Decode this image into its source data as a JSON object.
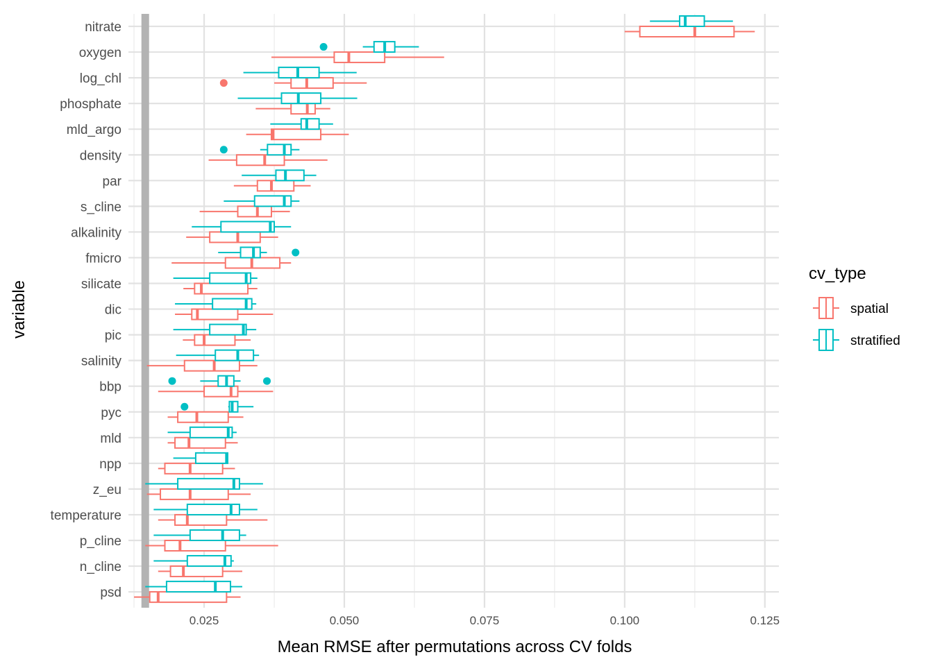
{
  "chart_data": {
    "type": "boxplot",
    "orientation": "horizontal",
    "xlabel": "Mean RMSE after permutations across CV folds",
    "ylabel": "variable",
    "xlim": [
      0.0115,
      0.1275
    ],
    "xticks": [
      "0.025",
      "0.050",
      "0.075",
      "0.100",
      "0.125"
    ],
    "xtick_values": [
      0.025,
      0.05,
      0.075,
      0.1,
      0.125
    ],
    "xminor_values": [
      0.0125,
      0.0375,
      0.0625,
      0.0875,
      0.1125
    ],
    "grid": true,
    "reference_line": 0.0145,
    "reference_line_color": "#b3b3b3",
    "legend": {
      "title": "cv_type",
      "position": "right",
      "entries": [
        {
          "name": "spatial",
          "color": "#F8766D"
        },
        {
          "name": "stratified",
          "color": "#00BFC4"
        }
      ]
    },
    "categories": [
      "nitrate",
      "oxygen",
      "log_chl",
      "phosphate",
      "mld_argo",
      "density",
      "par",
      "s_cline",
      "alkalinity",
      "fmicro",
      "silicate",
      "dic",
      "pic",
      "salinity",
      "bbp",
      "pyc",
      "mld",
      "npp",
      "z_eu",
      "temperature",
      "p_cline",
      "n_cline",
      "psd"
    ],
    "series": [
      {
        "name": "spatial",
        "color": "#F8766D",
        "boxes": [
          {
            "min": 0.1,
            "q1": 0.1027,
            "median": 0.1125,
            "q3": 0.1195,
            "max": 0.1232,
            "outliers": []
          },
          {
            "min": 0.037,
            "q1": 0.0482,
            "median": 0.0508,
            "q3": 0.0572,
            "max": 0.0678,
            "outliers": []
          },
          {
            "min": 0.0375,
            "q1": 0.0405,
            "median": 0.0433,
            "q3": 0.048,
            "max": 0.054,
            "outliers": [
              0.0285
            ]
          },
          {
            "min": 0.0342,
            "q1": 0.0405,
            "median": 0.0434,
            "q3": 0.0448,
            "max": 0.0475,
            "outliers": []
          },
          {
            "min": 0.0325,
            "q1": 0.037,
            "median": 0.0373,
            "q3": 0.0458,
            "max": 0.0508,
            "outliers": []
          },
          {
            "min": 0.0258,
            "q1": 0.0308,
            "median": 0.0358,
            "q3": 0.0393,
            "max": 0.047,
            "outliers": []
          },
          {
            "min": 0.0303,
            "q1": 0.0345,
            "median": 0.037,
            "q3": 0.041,
            "max": 0.044,
            "outliers": []
          },
          {
            "min": 0.0242,
            "q1": 0.031,
            "median": 0.0345,
            "q3": 0.037,
            "max": 0.0403,
            "outliers": []
          },
          {
            "min": 0.0218,
            "q1": 0.026,
            "median": 0.031,
            "q3": 0.035,
            "max": 0.0382,
            "outliers": []
          },
          {
            "min": 0.0192,
            "q1": 0.0288,
            "median": 0.0335,
            "q3": 0.0385,
            "max": 0.0405,
            "outliers": []
          },
          {
            "min": 0.0213,
            "q1": 0.0233,
            "median": 0.0245,
            "q3": 0.0328,
            "max": 0.0345,
            "outliers": []
          },
          {
            "min": 0.0198,
            "q1": 0.0228,
            "median": 0.0238,
            "q3": 0.031,
            "max": 0.0373,
            "outliers": []
          },
          {
            "min": 0.0212,
            "q1": 0.0233,
            "median": 0.025,
            "q3": 0.0305,
            "max": 0.0333,
            "outliers": []
          },
          {
            "min": 0.0148,
            "q1": 0.0215,
            "median": 0.0268,
            "q3": 0.0313,
            "max": 0.0345,
            "outliers": []
          },
          {
            "min": 0.0168,
            "q1": 0.025,
            "median": 0.0298,
            "q3": 0.031,
            "max": 0.0373,
            "outliers": []
          },
          {
            "min": 0.0185,
            "q1": 0.0203,
            "median": 0.0237,
            "q3": 0.0293,
            "max": 0.032,
            "outliers": []
          },
          {
            "min": 0.0185,
            "q1": 0.0198,
            "median": 0.0223,
            "q3": 0.0288,
            "max": 0.031,
            "outliers": []
          },
          {
            "min": 0.0168,
            "q1": 0.018,
            "median": 0.0225,
            "q3": 0.0283,
            "max": 0.0305,
            "outliers": []
          },
          {
            "min": 0.0148,
            "q1": 0.0172,
            "median": 0.0225,
            "q3": 0.0293,
            "max": 0.0333,
            "outliers": []
          },
          {
            "min": 0.0168,
            "q1": 0.0198,
            "median": 0.022,
            "q3": 0.029,
            "max": 0.0363,
            "outliers": []
          },
          {
            "min": 0.0145,
            "q1": 0.018,
            "median": 0.0207,
            "q3": 0.0288,
            "max": 0.0382,
            "outliers": []
          },
          {
            "min": 0.0168,
            "q1": 0.019,
            "median": 0.0213,
            "q3": 0.0283,
            "max": 0.0318,
            "outliers": []
          },
          {
            "min": 0.0125,
            "q1": 0.0153,
            "median": 0.0168,
            "q3": 0.029,
            "max": 0.0315,
            "outliers": []
          }
        ]
      },
      {
        "name": "stratified",
        "color": "#00BFC4",
        "boxes": [
          {
            "min": 0.1045,
            "q1": 0.1098,
            "median": 0.1108,
            "q3": 0.1142,
            "max": 0.1193,
            "outliers": []
          },
          {
            "min": 0.0533,
            "q1": 0.0553,
            "median": 0.0572,
            "q3": 0.059,
            "max": 0.0633,
            "outliers": [
              0.0463
            ]
          },
          {
            "min": 0.032,
            "q1": 0.0383,
            "median": 0.0417,
            "q3": 0.0455,
            "max": 0.0522,
            "outliers": []
          },
          {
            "min": 0.031,
            "q1": 0.0388,
            "median": 0.0418,
            "q3": 0.0458,
            "max": 0.0523,
            "outliers": []
          },
          {
            "min": 0.0368,
            "q1": 0.0423,
            "median": 0.0433,
            "q3": 0.0455,
            "max": 0.048,
            "outliers": []
          },
          {
            "min": 0.035,
            "q1": 0.0363,
            "median": 0.0393,
            "q3": 0.0405,
            "max": 0.042,
            "outliers": [
              0.0285
            ]
          },
          {
            "min": 0.0317,
            "q1": 0.0378,
            "median": 0.0395,
            "q3": 0.0428,
            "max": 0.045,
            "outliers": []
          },
          {
            "min": 0.0285,
            "q1": 0.034,
            "median": 0.0393,
            "q3": 0.0405,
            "max": 0.042,
            "outliers": []
          },
          {
            "min": 0.0228,
            "q1": 0.028,
            "median": 0.0368,
            "q3": 0.0375,
            "max": 0.0405,
            "outliers": []
          },
          {
            "min": 0.0275,
            "q1": 0.0315,
            "median": 0.0338,
            "q3": 0.035,
            "max": 0.0362,
            "outliers": [
              0.0413
            ]
          },
          {
            "min": 0.0195,
            "q1": 0.026,
            "median": 0.0325,
            "q3": 0.0333,
            "max": 0.0345,
            "outliers": []
          },
          {
            "min": 0.0198,
            "q1": 0.0265,
            "median": 0.0325,
            "q3": 0.0335,
            "max": 0.0343,
            "outliers": []
          },
          {
            "min": 0.0195,
            "q1": 0.026,
            "median": 0.032,
            "q3": 0.0325,
            "max": 0.0343,
            "outliers": []
          },
          {
            "min": 0.02,
            "q1": 0.027,
            "median": 0.031,
            "q3": 0.0338,
            "max": 0.0348,
            "outliers": []
          },
          {
            "min": 0.0243,
            "q1": 0.0275,
            "median": 0.029,
            "q3": 0.0303,
            "max": 0.0315,
            "outliers": [
              0.0193,
              0.0362
            ]
          },
          {
            "min": 0.0293,
            "q1": 0.0295,
            "median": 0.03,
            "q3": 0.031,
            "max": 0.0338,
            "outliers": [
              0.0215
            ]
          },
          {
            "min": 0.0185,
            "q1": 0.0225,
            "median": 0.0293,
            "q3": 0.03,
            "max": 0.0308,
            "outliers": []
          },
          {
            "min": 0.0195,
            "q1": 0.0235,
            "median": 0.029,
            "q3": 0.0292,
            "max": 0.0292,
            "outliers": []
          },
          {
            "min": 0.0145,
            "q1": 0.0203,
            "median": 0.0303,
            "q3": 0.0313,
            "max": 0.0355,
            "outliers": []
          },
          {
            "min": 0.016,
            "q1": 0.022,
            "median": 0.0298,
            "q3": 0.0313,
            "max": 0.0345,
            "outliers": []
          },
          {
            "min": 0.016,
            "q1": 0.0225,
            "median": 0.0283,
            "q3": 0.0313,
            "max": 0.0325,
            "outliers": []
          },
          {
            "min": 0.016,
            "q1": 0.022,
            "median": 0.0287,
            "q3": 0.0298,
            "max": 0.0303,
            "outliers": []
          },
          {
            "min": 0.0145,
            "q1": 0.0183,
            "median": 0.027,
            "q3": 0.0297,
            "max": 0.0318,
            "outliers": []
          }
        ]
      }
    ]
  }
}
